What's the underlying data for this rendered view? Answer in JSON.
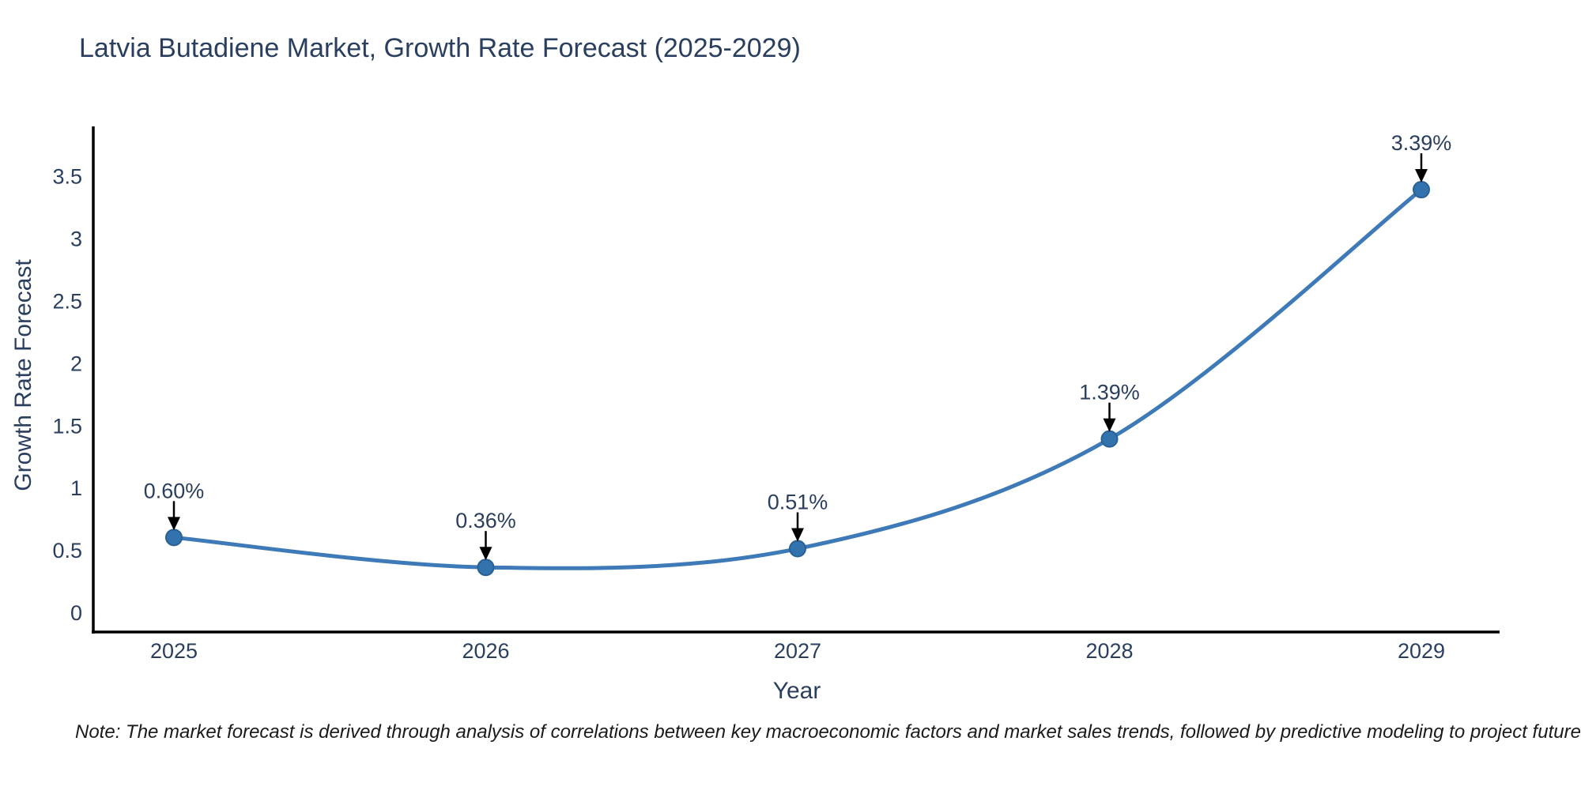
{
  "note": "Note: The market forecast is derived through analysis of correlations between key macroeconomic factors and market sales trends, followed by predictive modeling to project future sales",
  "chart_data": {
    "type": "line",
    "title": "Latvia Butadiene Market, Growth Rate Forecast (2025-2029)",
    "xlabel": "Year",
    "ylabel": "Growth Rate Forecast",
    "categories": [
      "2025",
      "2026",
      "2027",
      "2028",
      "2029"
    ],
    "values": [
      0.6,
      0.36,
      0.51,
      1.39,
      3.39
    ],
    "point_labels": [
      "0.60%",
      "0.36%",
      "0.51%",
      "1.39%",
      "3.39%"
    ],
    "series": [
      {
        "name": "Growth Rate Forecast",
        "values": [
          0.6,
          0.36,
          0.51,
          1.39,
          3.39
        ]
      }
    ],
    "y_ticks": [
      0,
      0.5,
      1,
      1.5,
      2,
      2.5,
      3,
      3.5
    ],
    "y_tick_labels": [
      "0",
      "0.5",
      "1",
      "1.5",
      "2",
      "2.5",
      "3",
      "3.5"
    ],
    "ylim": [
      -0.16,
      3.9
    ],
    "line_shape": "spline",
    "grid": false,
    "legend": "none",
    "line_color": "#3d7ab7",
    "marker_color": "#3273ae",
    "marker_edge_color": "#2a6195",
    "axis_color": "#000000",
    "arrow_color": "#000000",
    "text_color": "#2a3f5f"
  }
}
